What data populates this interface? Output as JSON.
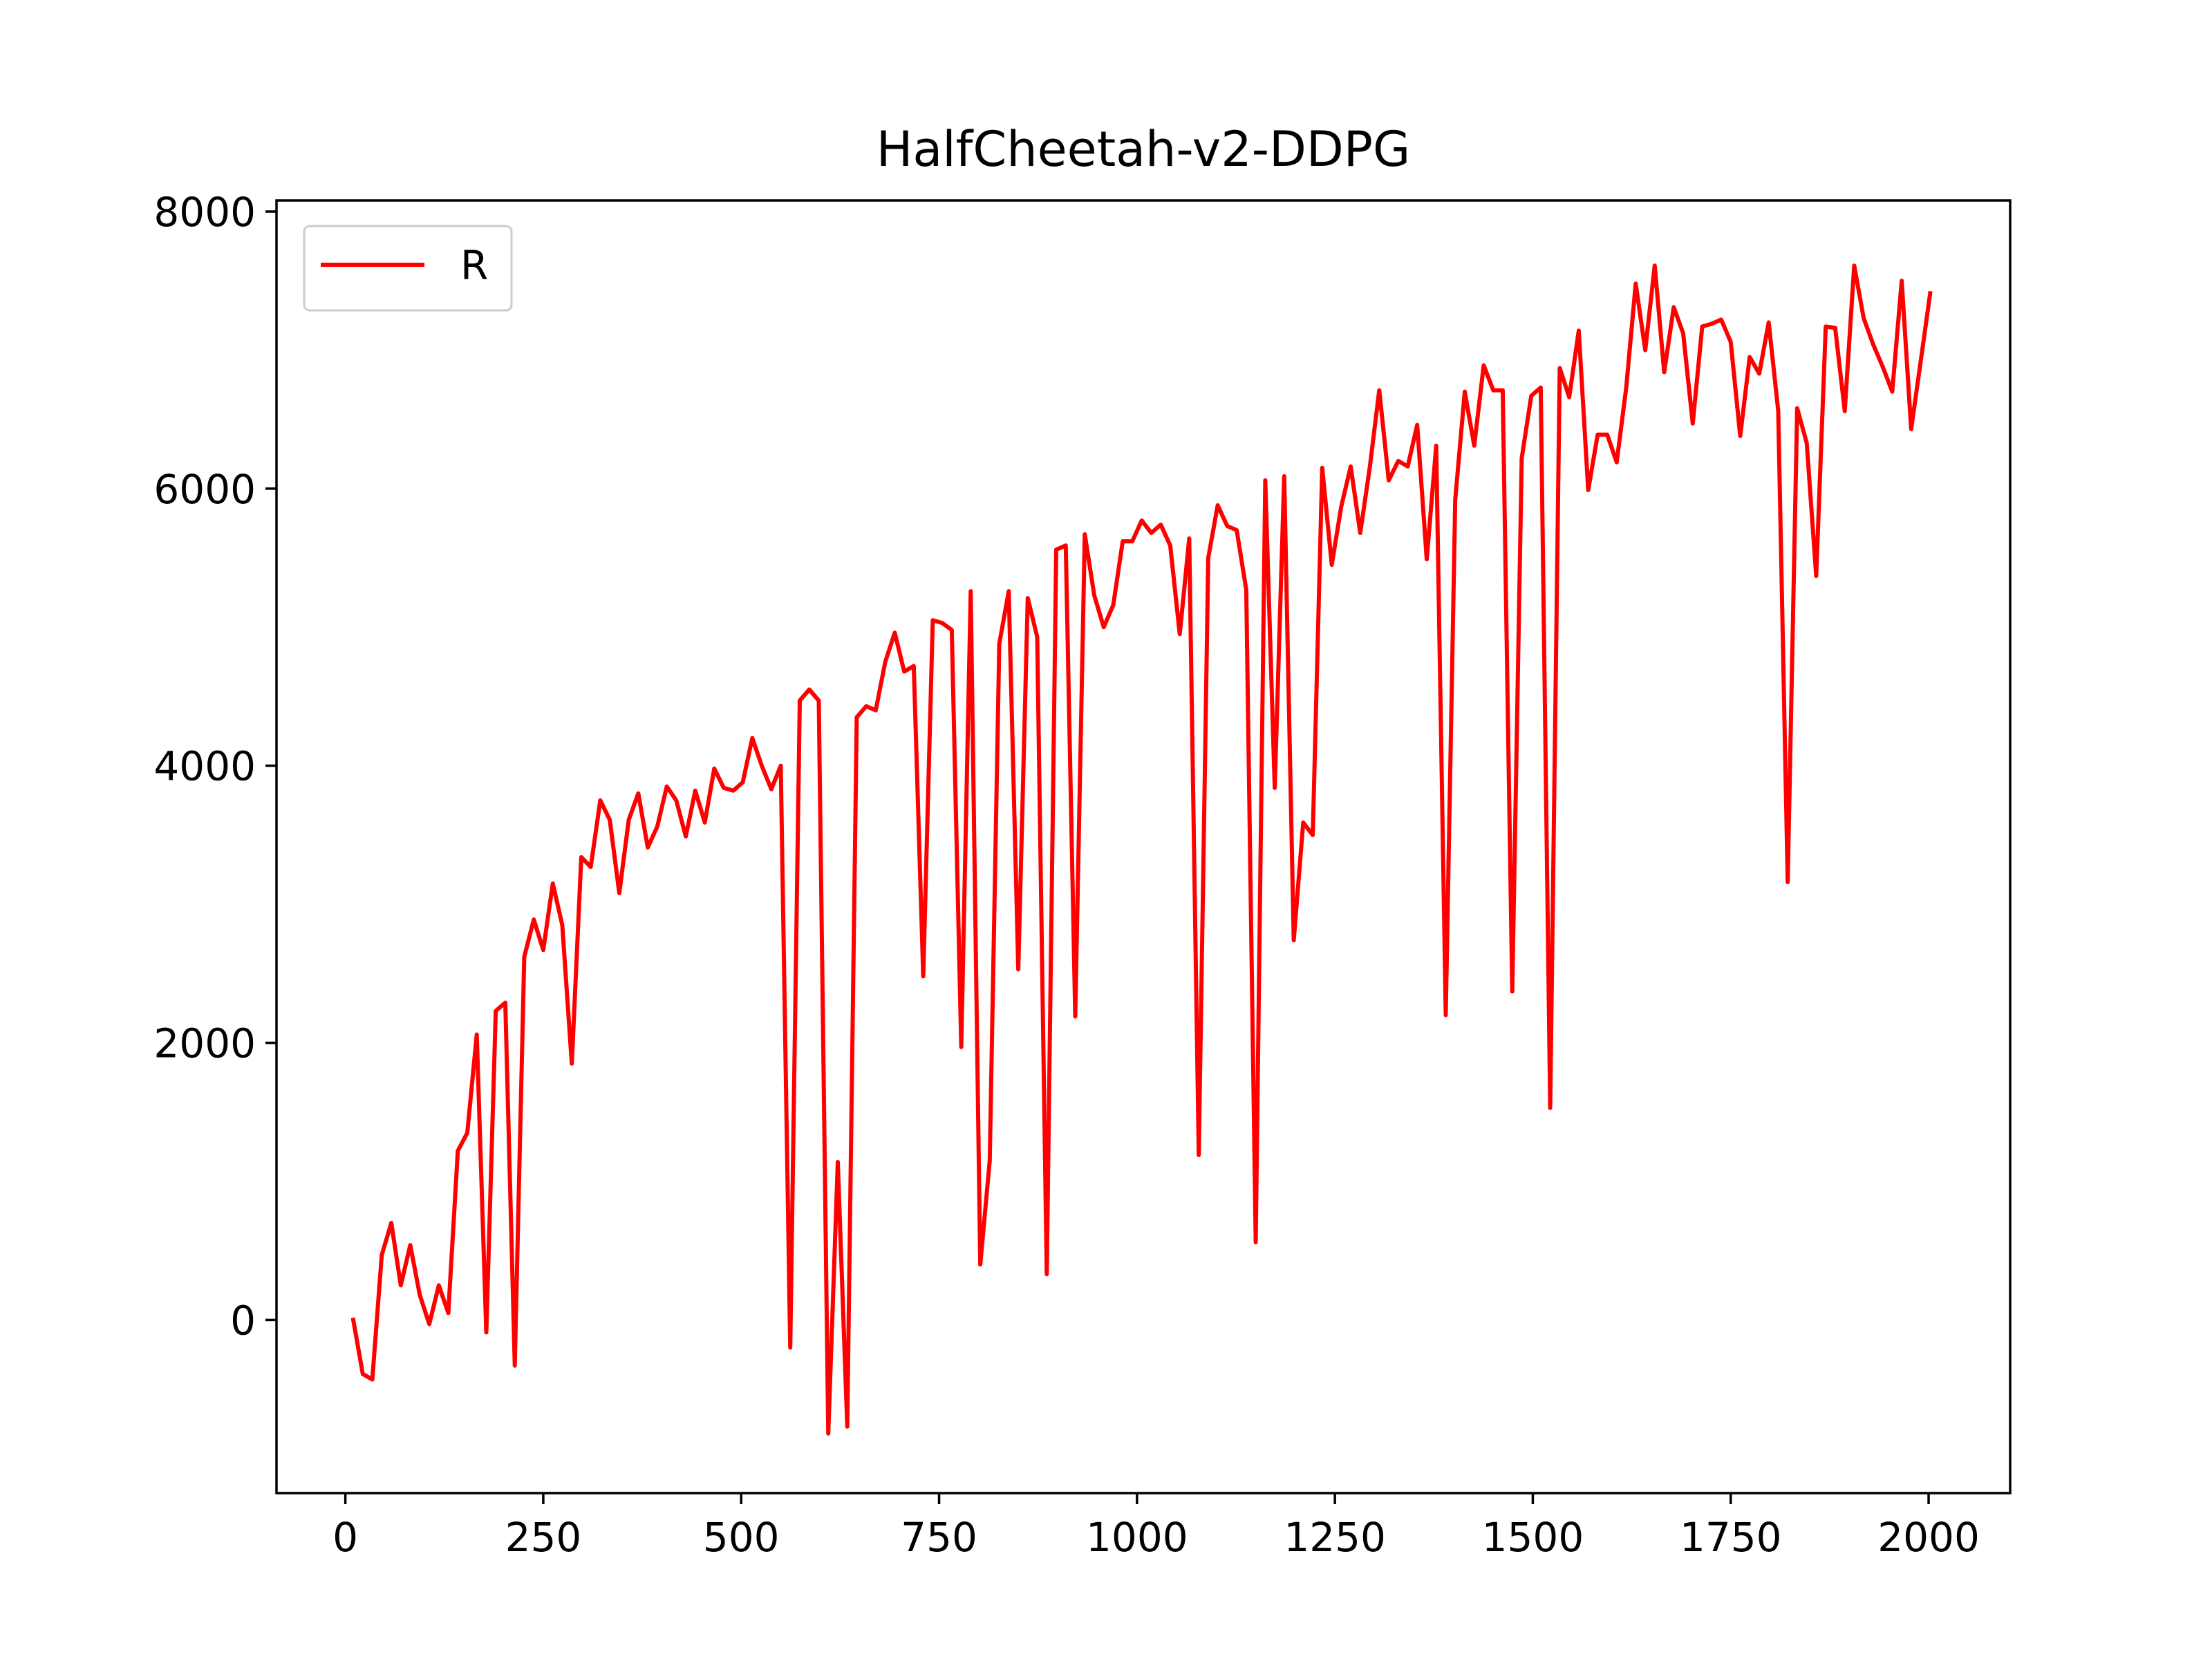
{
  "chart_data": {
    "type": "line",
    "title": "HalfCheetah-v2-DDPG",
    "xlabel": "",
    "ylabel": "",
    "xlim": [
      -87,
      2103
    ],
    "ylim": [
      -1250,
      8080
    ],
    "x_ticks": [
      0,
      250,
      500,
      750,
      1000,
      1250,
      1500,
      1750,
      2000
    ],
    "y_ticks": [
      0,
      2000,
      4000,
      6000,
      8000
    ],
    "x_tick_labels": [
      "0",
      "250",
      "500",
      "750",
      "1000",
      "1250",
      "1500",
      "1750",
      "2000"
    ],
    "y_tick_labels": [
      "0",
      "2000",
      "4000",
      "6000",
      "8000"
    ],
    "grid": false,
    "legend": {
      "position": "top-left",
      "entries": [
        "R"
      ]
    },
    "series": [
      {
        "name": "R",
        "color": "#ff0000",
        "x": [
          10,
          22,
          34,
          46,
          58,
          70,
          82,
          94,
          106,
          118,
          130,
          142,
          154,
          166,
          178,
          190,
          202,
          214,
          226,
          238,
          250,
          262,
          274,
          286,
          298,
          310,
          322,
          334,
          346,
          358,
          370,
          382,
          394,
          406,
          418,
          430,
          442,
          454,
          466,
          478,
          490,
          502,
          514,
          526,
          538,
          550,
          562,
          574,
          586,
          598,
          610,
          622,
          634,
          646,
          658,
          670,
          682,
          694,
          706,
          718,
          730,
          742,
          754,
          766,
          778,
          790,
          802,
          814,
          826,
          838,
          850,
          862,
          874,
          886,
          898,
          910,
          922,
          934,
          946,
          958,
          970,
          982,
          994,
          1006,
          1018,
          1030,
          1042,
          1054,
          1066,
          1078,
          1090,
          1102,
          1114,
          1126,
          1138,
          1150,
          1162,
          1174,
          1186,
          1198,
          1210,
          1222,
          1234,
          1246,
          1258,
          1270,
          1282,
          1294,
          1306,
          1318,
          1330,
          1342,
          1354,
          1366,
          1378,
          1390,
          1402,
          1414,
          1426,
          1438,
          1450,
          1462,
          1474,
          1486,
          1498,
          1510,
          1522,
          1534,
          1546,
          1558,
          1570,
          1582,
          1594,
          1606,
          1618,
          1630,
          1642,
          1654,
          1666,
          1678,
          1690,
          1702,
          1714,
          1726,
          1738,
          1750,
          1762,
          1774,
          1786,
          1798,
          1810,
          1822,
          1834,
          1846,
          1858,
          1870,
          1882,
          1894,
          1906,
          1918,
          1930,
          1942,
          1954,
          1966,
          1978,
          1990,
          2002
        ],
        "y": [
          0,
          -390,
          -430,
          470,
          700,
          250,
          540,
          180,
          -30,
          250,
          50,
          1220,
          1350,
          2060,
          -90,
          2230,
          2290,
          -330,
          2620,
          2890,
          2670,
          3150,
          2850,
          1850,
          3340,
          3270,
          3750,
          3610,
          3080,
          3610,
          3800,
          3410,
          3560,
          3850,
          3750,
          3490,
          3820,
          3590,
          3980,
          3840,
          3820,
          3880,
          4200,
          4000,
          3830,
          4000,
          -200,
          4470,
          4550,
          4470,
          -820,
          1140,
          -770,
          4350,
          4430,
          4400,
          4750,
          4960,
          4680,
          4720,
          2480,
          5050,
          5030,
          4980,
          1970,
          5260,
          400,
          1150,
          4880,
          5260,
          2530,
          5210,
          4930,
          330,
          5560,
          5590,
          2190,
          5670,
          5230,
          5000,
          5160,
          5620,
          5620,
          5770,
          5680,
          5740,
          5590,
          4950,
          5640,
          1190,
          5500,
          5880,
          5730,
          5700,
          5270,
          560,
          6060,
          3840,
          6090,
          2740,
          3590,
          3500,
          6150,
          5450,
          5870,
          6160,
          5680,
          6150,
          6710,
          6060,
          6200,
          6160,
          6460,
          5490,
          6310,
          2200,
          5920,
          6700,
          6310,
          6890,
          6710,
          6710,
          2370,
          6220,
          6670,
          6730,
          1530,
          6870,
          6660,
          7140,
          5990,
          6390,
          6390,
          6190,
          6730,
          7480,
          7000,
          7610,
          6840,
          7310,
          7120,
          6470,
          7170,
          7190,
          7220,
          7060,
          6380,
          6950,
          6830,
          7200,
          6560,
          3160,
          6580,
          6330,
          5370,
          7170,
          7160,
          6560,
          7610,
          7230,
          7040,
          6880,
          6700,
          7500,
          6430,
          6920,
          7410
        ]
      }
    ]
  }
}
